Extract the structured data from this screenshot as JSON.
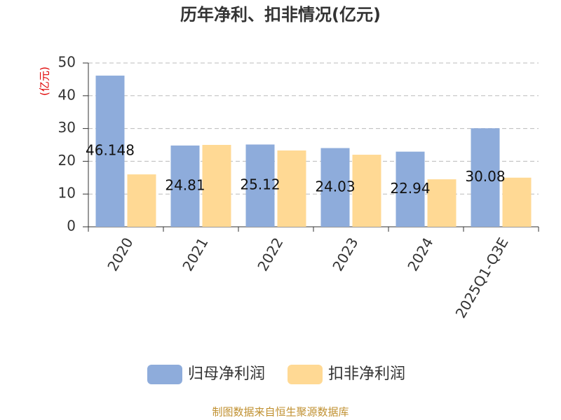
{
  "chart_data": {
    "type": "bar",
    "title": "历年净利、扣非情况(亿元)",
    "y_label": "(亿元)",
    "categories": [
      "2020",
      "2021",
      "2022",
      "2023",
      "2024",
      "2025Q1-Q3E"
    ],
    "series": [
      {
        "name": "归母净利润",
        "color": "#8eacdb",
        "values": [
          46.148,
          24.81,
          25.12,
          24.03,
          22.94,
          30.08
        ],
        "show_labels": true
      },
      {
        "name": "扣非净利润",
        "color": "#ffd994",
        "values": [
          16.0,
          25.0,
          23.3,
          22.0,
          14.5,
          15.0
        ],
        "show_labels": false
      }
    ],
    "ylim": [
      0,
      50
    ],
    "yticks": [
      0,
      10,
      20,
      30,
      40,
      50
    ],
    "grid": true,
    "source": "制图数据来自恒生聚源数据库"
  }
}
